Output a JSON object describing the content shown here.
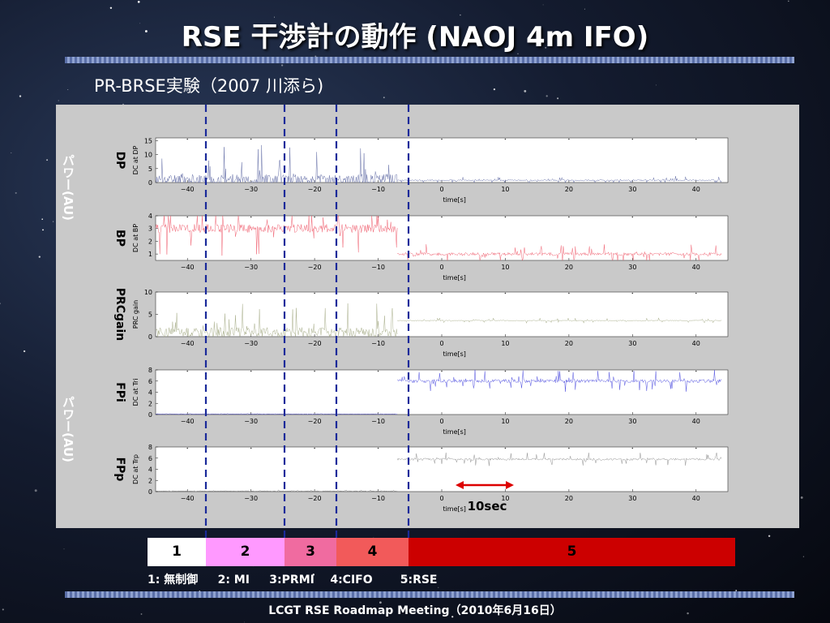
{
  "slide": {
    "title": "RSE 干渉計の動作 (NAOJ 4m IFO)",
    "subtitle": "PR-BRSE実験（2007 川添ら)",
    "ylabel_power_1": "パワー(AU)",
    "ylabel_power_2": "パワー(AU)",
    "annotation_10sec": "10sec",
    "legend_line": "1: 無制御     2: MI     3:PRMI    4:CIFO       5:RSE",
    "footer": "LCGT RSE Roadmap Meeting（2010年6月16日）",
    "phases": [
      {
        "label": "1",
        "color": "#ffffff"
      },
      {
        "label": "2",
        "color": "#ff99ff"
      },
      {
        "label": "3",
        "color": "#f06ba0"
      },
      {
        "label": "4",
        "color": "#f25a5a"
      },
      {
        "label": "5",
        "color": "#cc0000"
      }
    ],
    "colors": {
      "band": "#7387bd",
      "panel": "#c9c9c9",
      "dashed": "#1a2a9a",
      "arrow": "#dd0000"
    }
  },
  "chart_data": [
    {
      "type": "line",
      "side_label": "DP",
      "ylabel": "DC at DP",
      "xlabel": "time[s]",
      "xlim": [
        -45,
        45
      ],
      "ylim": [
        0,
        16
      ],
      "yticks": [
        "0",
        "5",
        "10",
        "15"
      ],
      "xticks": [
        "−40",
        "−30",
        "−20",
        "−10",
        "0",
        "10",
        "20",
        "30",
        "40"
      ],
      "color": "#6670a8",
      "series": [
        {
          "segments": [
            {
              "x": [
                -45,
                -7
              ],
              "base": 1.0,
              "spike": 13.5
            },
            {
              "x": [
                -7,
                44
              ],
              "base": 0.8,
              "spike": 1.5
            }
          ]
        }
      ]
    },
    {
      "type": "line",
      "side_label": "BP",
      "ylabel": "DC at BP",
      "xlabel": "time[s]",
      "xlim": [
        -45,
        45
      ],
      "ylim": [
        0.5,
        4
      ],
      "yticks": [
        "1",
        "2",
        "3",
        "4"
      ],
      "xticks": [
        "−40",
        "−30",
        "−20",
        "−10",
        "0",
        "10",
        "20",
        "30",
        "40"
      ],
      "color": "#f06070",
      "series": [
        {
          "segments": [
            {
              "x": [
                -45,
                -7
              ],
              "base": 3.0,
              "spike": 2.2
            },
            {
              "x": [
                -7,
                44
              ],
              "base": 1.0,
              "spike": 0.8
            }
          ]
        }
      ]
    },
    {
      "type": "line",
      "side_label": "PRCgain",
      "ylabel": "PRC gain",
      "xlabel": "time[s]",
      "xlim": [
        -45,
        45
      ],
      "ylim": [
        0,
        10
      ],
      "yticks": [
        "0",
        "5",
        "10"
      ],
      "xticks": [
        "−40",
        "−30",
        "−20",
        "−10",
        "0",
        "10",
        "20",
        "30",
        "40"
      ],
      "color": "#a8ae8a",
      "series": [
        {
          "segments": [
            {
              "x": [
                -45,
                -7
              ],
              "base": 1.0,
              "spike": 7.0
            },
            {
              "x": [
                -7,
                44
              ],
              "base": 3.6,
              "spike": 0.6
            }
          ]
        }
      ]
    },
    {
      "type": "line",
      "side_label": "FPi",
      "ylabel": "DC at Tri",
      "xlabel": "time[s]",
      "xlim": [
        -45,
        45
      ],
      "ylim": [
        0,
        8
      ],
      "yticks": [
        "0",
        "2",
        "4",
        "6",
        "8"
      ],
      "xticks": [
        "−40",
        "−30",
        "−20",
        "−10",
        "0",
        "10",
        "20",
        "30",
        "40"
      ],
      "color": "#5050e0",
      "series": [
        {
          "segments": [
            {
              "x": [
                -45,
                -7
              ],
              "base": 0.1,
              "spike": 0.1
            },
            {
              "x": [
                -7,
                44
              ],
              "base": 6.0,
              "spike": 2.0
            }
          ]
        }
      ]
    },
    {
      "type": "line",
      "side_label": "FPp",
      "ylabel": "DC at Trp",
      "xlabel": "time[s]",
      "xlim": [
        -45,
        45
      ],
      "ylim": [
        0,
        8
      ],
      "yticks": [
        "0",
        "2",
        "4",
        "6",
        "8"
      ],
      "xticks": [
        "−40",
        "−30",
        "−20",
        "−10",
        "0",
        "10",
        "20",
        "30",
        "40"
      ],
      "color": "#909090",
      "series": [
        {
          "segments": [
            {
              "x": [
                -45,
                -7
              ],
              "base": 0.1,
              "spike": 0.2
            },
            {
              "x": [
                -7,
                44
              ],
              "base": 5.8,
              "spike": 1.2
            }
          ]
        }
      ]
    }
  ]
}
